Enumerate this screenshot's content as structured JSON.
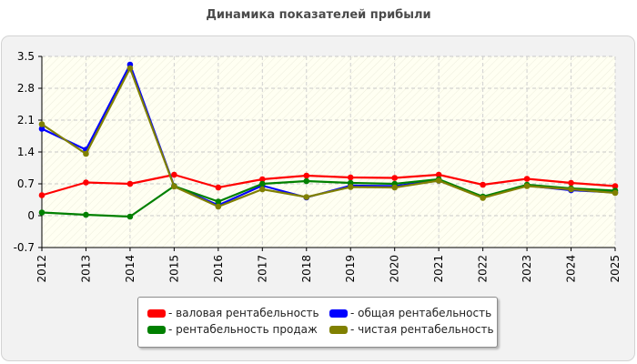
{
  "chart_data": {
    "type": "line",
    "title": "Динамика показателей прибыли",
    "x": [
      "2012",
      "2013",
      "2014",
      "2015",
      "2016",
      "2017",
      "2018",
      "2019",
      "2020",
      "2021",
      "2022",
      "2023",
      "2024",
      "2025"
    ],
    "ylim": [
      -0.7,
      3.5
    ],
    "yticks": [
      "3.5",
      "2.8",
      "2.1",
      "1.4",
      "0.7",
      "0",
      "-0.7"
    ],
    "grid": true,
    "legend_position": "bottom",
    "series": [
      {
        "name": "- валовая рентабельность",
        "color": "#ff0000",
        "values": [
          0.45,
          0.73,
          0.7,
          0.9,
          0.62,
          0.8,
          0.88,
          0.84,
          0.83,
          0.9,
          0.68,
          0.81,
          0.72,
          0.65
        ]
      },
      {
        "name": "- рентабельность продаж",
        "color": "#008000",
        "values": [
          0.07,
          0.02,
          -0.02,
          0.65,
          0.31,
          0.7,
          0.76,
          0.72,
          0.7,
          0.8,
          0.42,
          0.68,
          0.6,
          0.55
        ]
      },
      {
        "name": "- общая рентабельность",
        "color": "#0000ff",
        "values": [
          1.91,
          1.45,
          3.32,
          0.65,
          0.23,
          0.66,
          0.4,
          0.66,
          0.65,
          0.77,
          0.41,
          0.66,
          0.56,
          0.51
        ]
      },
      {
        "name": "- чистая рентабельность",
        "color": "#808000",
        "values": [
          2.01,
          1.36,
          3.24,
          0.64,
          0.2,
          0.58,
          0.41,
          0.63,
          0.62,
          0.77,
          0.39,
          0.65,
          0.58,
          0.5
        ]
      }
    ]
  }
}
